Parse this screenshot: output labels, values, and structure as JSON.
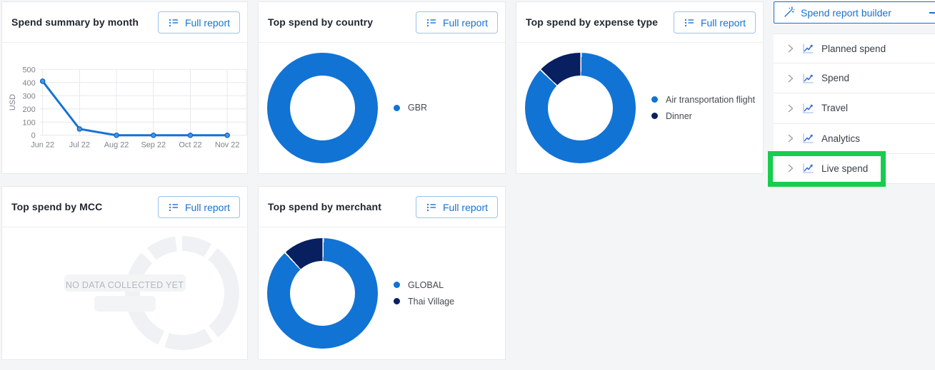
{
  "colors": {
    "primary_blue": "#1672d3",
    "donut_blue": "#1173d4",
    "donut_navy": "#082060",
    "annotation_green": "#17cd4d",
    "placeholder_gray": "#eff1f4"
  },
  "cards": {
    "month": {
      "title": "Spend summary by month",
      "button": "Full report"
    },
    "country": {
      "title": "Top spend by country",
      "button": "Full report"
    },
    "expense": {
      "title": "Top spend by expense type",
      "button": "Full report"
    },
    "mcc": {
      "title": "Top spend by MCC",
      "button": "Full report",
      "empty_text": "NO DATA COLLECTED YET"
    },
    "merchant": {
      "title": "Top spend by merchant",
      "button": "Full report"
    }
  },
  "sidebar": {
    "builder_label": "Spend report builder",
    "items": [
      {
        "label": "Planned spend"
      },
      {
        "label": "Spend"
      },
      {
        "label": "Travel"
      },
      {
        "label": "Analytics"
      },
      {
        "label": "Live spend",
        "annotated": true
      }
    ]
  },
  "chart_data": [
    {
      "id": "month",
      "type": "line",
      "title": "Spend summary by month",
      "xlabel": "",
      "ylabel": "USD",
      "categories": [
        "Jun 22",
        "Jul 22",
        "Aug 22",
        "Sep 22",
        "Oct 22",
        "Nov 22"
      ],
      "values": [
        410,
        48,
        0,
        0,
        0,
        0
      ],
      "ylim": [
        0,
        500
      ],
      "yticks": [
        0,
        100,
        200,
        300,
        400,
        500
      ],
      "grid": true,
      "line_color": "#1672d3"
    },
    {
      "id": "country",
      "type": "pie",
      "title": "Top spend by country",
      "legend_position": "right",
      "slices": [
        {
          "label": "GBR",
          "value": 100,
          "color": "#1173d4"
        }
      ]
    },
    {
      "id": "expense",
      "type": "pie",
      "title": "Top spend by expense type",
      "legend_position": "right",
      "slices": [
        {
          "label": "Air transportation flight",
          "value": 87,
          "color": "#1173d4"
        },
        {
          "label": "Dinner",
          "value": 13,
          "color": "#082060"
        }
      ]
    },
    {
      "id": "mcc",
      "type": "pie",
      "title": "Top spend by MCC",
      "empty": true,
      "placeholder_text": "NO DATA COLLECTED YET",
      "placeholder_color": "#eff1f4",
      "gap_angles": [
        38,
        148,
        205,
        322
      ]
    },
    {
      "id": "merchant",
      "type": "pie",
      "title": "Top spend by merchant",
      "legend_position": "right",
      "slices": [
        {
          "label": "GLOBAL",
          "value": 88,
          "color": "#1173d4"
        },
        {
          "label": "Thai Village",
          "value": 12,
          "color": "#082060"
        }
      ]
    }
  ]
}
